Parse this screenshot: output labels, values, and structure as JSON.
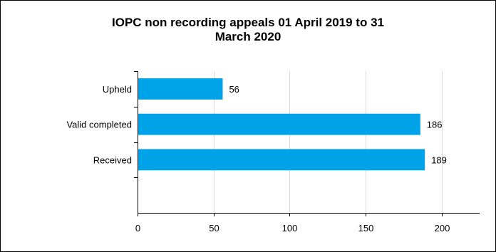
{
  "chart_data": {
    "type": "bar",
    "orientation": "horizontal",
    "title_lines": [
      "IOPC non recording appeals 01 April 2019 to 31",
      "March 2020"
    ],
    "categories": [
      "Upheld",
      "Valid completed",
      "Received"
    ],
    "values": [
      56,
      186,
      189
    ],
    "data_labels": [
      "56",
      "186",
      "189"
    ],
    "xlim": [
      0,
      225
    ],
    "x_ticks": [
      0,
      50,
      100,
      150,
      200
    ],
    "x_tick_labels": [
      "0",
      "50",
      "100",
      "150",
      "200"
    ],
    "xlabel": "",
    "ylabel": "",
    "grid": "vertical",
    "legend": "none",
    "bar_color": "#00a2e8",
    "grid_color": "#d9d9d9",
    "axis_color": "#000000"
  }
}
